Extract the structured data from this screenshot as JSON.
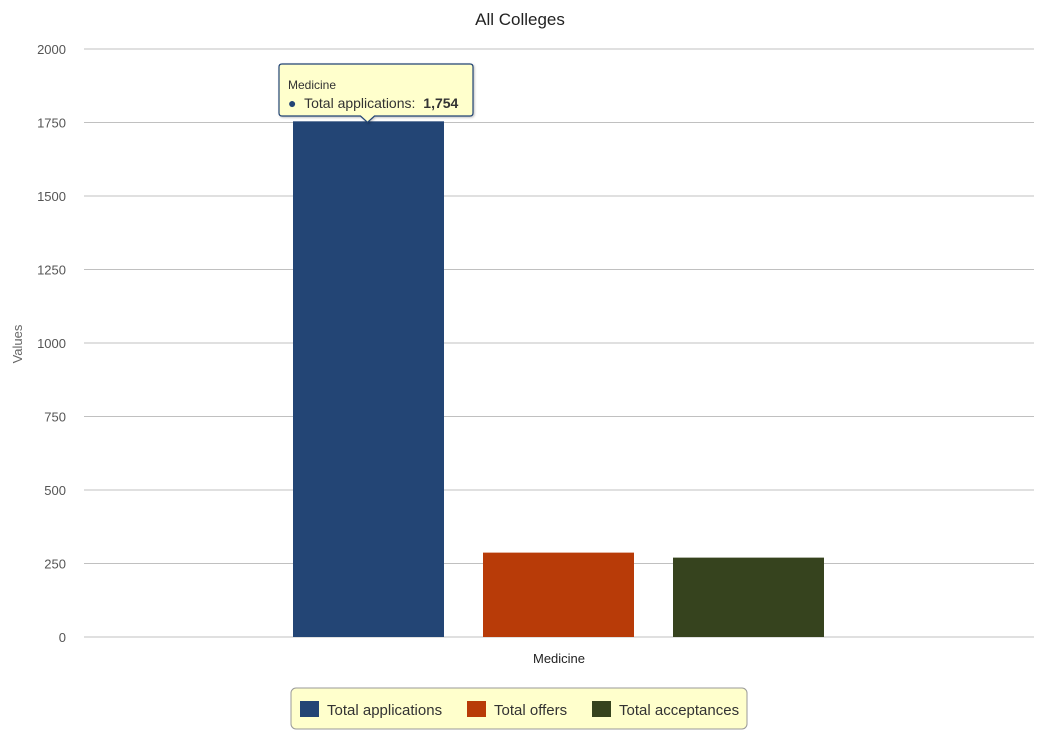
{
  "chart_data": {
    "type": "bar",
    "title": "All Colleges",
    "ylabel": "Values",
    "xlabel": "",
    "categories": [
      "Medicine"
    ],
    "ylim": [
      0,
      2000
    ],
    "yticks": [
      0,
      250,
      500,
      750,
      1000,
      1250,
      1500,
      1750,
      2000
    ],
    "grid": true,
    "legend_position": "bottom-center",
    "series": [
      {
        "name": "Total applications",
        "values": [
          1754
        ],
        "color": "#234575"
      },
      {
        "name": "Total offers",
        "values": [
          287
        ],
        "color": "#b83b08"
      },
      {
        "name": "Total acceptances",
        "values": [
          270
        ],
        "color": "#36431e"
      }
    ]
  },
  "tooltip": {
    "category": "Medicine",
    "bullet": "●",
    "label": "Total applications:",
    "value": "1,754"
  },
  "colors": {
    "grid": "#c0c0c0",
    "axis": "#c0c0c0",
    "tooltip_background": "#ffffcc",
    "tooltip_border": "#234575",
    "legend_background": "#ffffcc",
    "legend_border": "#999999"
  }
}
